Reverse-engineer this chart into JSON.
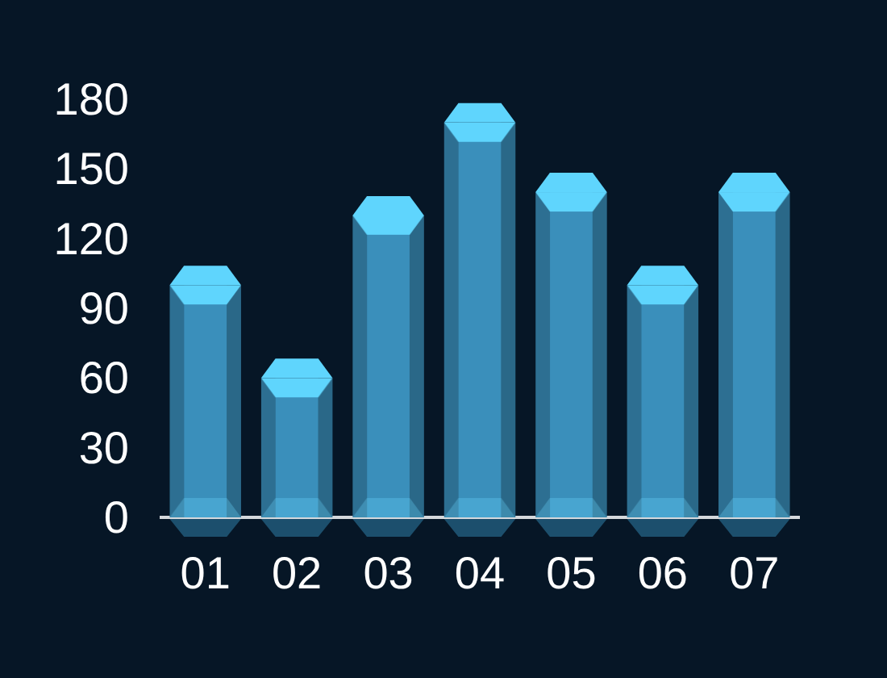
{
  "chart_data": {
    "type": "bar",
    "categories": [
      "01",
      "02",
      "03",
      "04",
      "05",
      "06",
      "07"
    ],
    "values": [
      100,
      60,
      130,
      170,
      140,
      100,
      140
    ],
    "color": "#3a8fbb",
    "ylim": [
      0,
      180
    ],
    "yticks": [
      0,
      30,
      60,
      90,
      120,
      150,
      180
    ]
  }
}
